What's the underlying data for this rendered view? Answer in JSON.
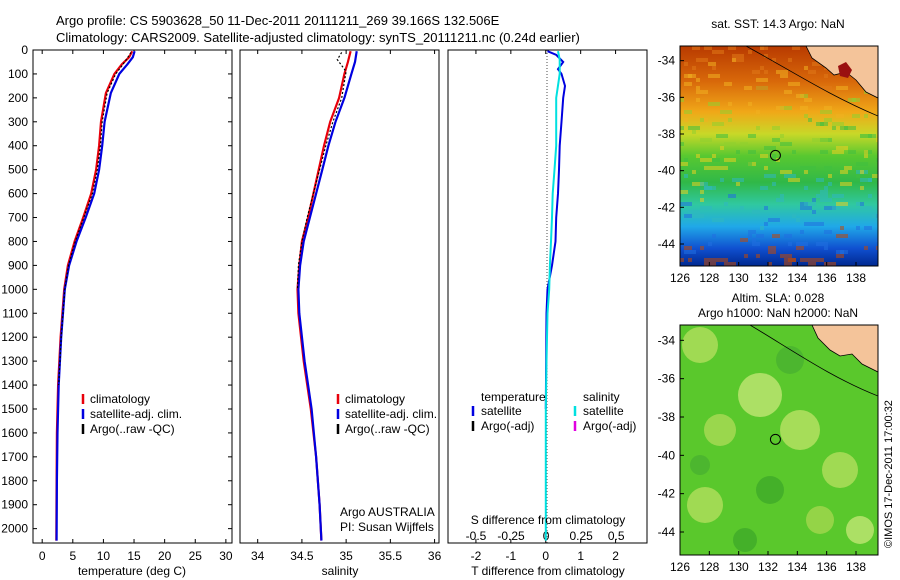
{
  "header": {
    "line1": "Argo profile: CS 5903628_50 11-Dec-2011 20111211_269 39.166S 132.506E",
    "line2": "Climatology: CARS2009. Satellite-adjusted climatology: synTS_20111211.nc (0.24d earlier)"
  },
  "chart_data": [
    {
      "type": "line",
      "xlabel": "temperature (deg C)",
      "ylabel": "",
      "xlim": [
        -1.5,
        31
      ],
      "ylim": [
        0,
        2060
      ],
      "x_ticks": [
        "0",
        "5",
        "10",
        "15",
        "20",
        "25",
        "30"
      ],
      "y_ticks": [
        "0",
        "100",
        "200",
        "300",
        "400",
        "500",
        "600",
        "700",
        "800",
        "900",
        "1000",
        "1100",
        "1200",
        "1300",
        "1400",
        "1500",
        "1600",
        "1700",
        "1800",
        "1900",
        "2000"
      ],
      "legend": [
        "climatology",
        "satellite-adj. clim.",
        "Argo(..raw -QC)"
      ],
      "legend_position": "lower-right",
      "colors": {
        "climatology": "#e8000b",
        "satellite-adj. clim.": "#0000e0",
        "Argo(..raw -QC)": "#000000"
      },
      "series": [
        {
          "name": "climatology",
          "x": [
            14.7,
            14.2,
            13.0,
            11.8,
            10.4,
            9.6,
            9.3,
            8.8,
            8.0,
            6.7,
            5.3,
            4.2,
            3.6,
            3.0,
            2.6,
            2.4,
            2.35,
            2.3
          ],
          "y": [
            5,
            30,
            60,
            100,
            180,
            300,
            400,
            500,
            600,
            700,
            800,
            900,
            1000,
            1200,
            1400,
            1600,
            1800,
            2050
          ]
        },
        {
          "name": "satellite-adj. clim.",
          "x": [
            15.1,
            14.8,
            13.9,
            12.6,
            11.2,
            10.2,
            9.8,
            9.3,
            8.5,
            7.1,
            5.6,
            4.4,
            3.7,
            3.1,
            2.7,
            2.5,
            2.4,
            2.35
          ],
          "y": [
            5,
            30,
            60,
            100,
            180,
            300,
            400,
            500,
            600,
            700,
            800,
            900,
            1000,
            1200,
            1400,
            1600,
            1800,
            2050
          ]
        },
        {
          "name": "Argo(..raw -QC)",
          "x": [
            14.5,
            14.0,
            13.2,
            12.0,
            10.6,
            9.8,
            9.5,
            9.0,
            8.2,
            6.8,
            5.4,
            4.3,
            3.7,
            3.1,
            2.7
          ],
          "y": [
            10,
            30,
            60,
            100,
            180,
            300,
            400,
            500,
            600,
            700,
            800,
            900,
            1000,
            1200,
            1400
          ]
        }
      ]
    },
    {
      "type": "line",
      "xlabel": "salinity",
      "xlim": [
        33.8,
        36.05
      ],
      "ylim": [
        0,
        2060
      ],
      "x_ticks": [
        "34",
        "34.5",
        "35",
        "35.5",
        "36"
      ],
      "legend": [
        "climatology",
        "satellite-adj. clim.",
        "Argo(..raw -QC)"
      ],
      "legend_position": "lower-right",
      "annotation": [
        "Argo AUSTRALIA",
        "PI: Susan Wijffels"
      ],
      "series": [
        {
          "name": "climatology",
          "x": [
            35.05,
            35.02,
            34.98,
            34.92,
            34.82,
            34.75,
            34.69,
            34.63,
            34.57,
            34.5,
            34.47,
            34.45,
            34.46,
            34.52,
            34.6,
            34.66,
            34.7,
            34.72
          ],
          "y": [
            5,
            50,
            100,
            200,
            300,
            400,
            500,
            600,
            700,
            800,
            900,
            1000,
            1100,
            1300,
            1500,
            1700,
            1900,
            2050
          ]
        },
        {
          "name": "satellite-adj. clim.",
          "x": [
            35.12,
            35.1,
            35.06,
            34.98,
            34.88,
            34.8,
            34.73,
            34.66,
            34.59,
            34.52,
            34.48,
            34.46,
            34.47,
            34.53,
            34.61,
            34.66,
            34.7,
            34.72
          ],
          "y": [
            5,
            50,
            100,
            200,
            300,
            400,
            500,
            600,
            700,
            800,
            900,
            1000,
            1100,
            1300,
            1500,
            1700,
            1900,
            2050
          ]
        },
        {
          "name": "Argo(..raw -QC)",
          "x": [
            34.95,
            34.9,
            35.0,
            34.95,
            34.85,
            34.77,
            34.7,
            34.63,
            34.56,
            34.5,
            34.46,
            34.45
          ],
          "y": [
            10,
            40,
            90,
            200,
            300,
            400,
            500,
            600,
            700,
            800,
            900,
            1000
          ]
        }
      ]
    },
    {
      "type": "line",
      "xlabel": "T difference from climatology",
      "x2label": "S difference from climatology",
      "xlim": [
        -2.8,
        2.9
      ],
      "ylim": [
        0,
        2060
      ],
      "x_ticks": [
        "-2",
        "-1",
        "0",
        "1",
        "2"
      ],
      "x2_ticks": [
        "-0.5",
        "-0.25",
        "0",
        "0.25",
        "0.5"
      ],
      "legend_headers": [
        "temperature",
        "salinity"
      ],
      "legend": [
        "satellite",
        "Argo(-adj)",
        "satellite",
        "Argo(-adj)"
      ],
      "colors": {
        "T satellite": "#0000e0",
        "T Argo(-adj)": "#000000",
        "S satellite": "#00e0e0",
        "S Argo(-adj)": "#e000e0"
      },
      "series": [
        {
          "name": "satellite",
          "quantity": "temperature",
          "x": [
            0.05,
            0.3,
            0.5,
            0.35,
            0.45,
            0.55,
            0.5,
            0.45,
            0.4,
            0.38,
            0.35,
            0.3,
            0.28,
            0.18,
            0.05,
            0.02,
            0.0
          ],
          "y": [
            5,
            20,
            50,
            80,
            100,
            150,
            200,
            300,
            400,
            500,
            600,
            700,
            800,
            900,
            1000,
            1100,
            1500
          ]
        },
        {
          "name": "satellite",
          "quantity": "salinity",
          "x": [
            0.35,
            0.4,
            0.4,
            0.3,
            0.3,
            0.3,
            0.25,
            0.2,
            0.18,
            0.15,
            0.12,
            0.1,
            0.05,
            0.02,
            0.0,
            0.0
          ],
          "y": [
            5,
            40,
            100,
            200,
            300,
            400,
            500,
            600,
            700,
            800,
            900,
            1000,
            1100,
            1300,
            1500,
            2050
          ]
        }
      ]
    },
    {
      "type": "heatmap",
      "title": "sat. SST: 14.3 Argo: NaN",
      "x_ticks": [
        "126",
        "128",
        "130",
        "132",
        "134",
        "136",
        "138"
      ],
      "y_ticks": [
        "-34",
        "-36",
        "-38",
        "-40",
        "-42",
        "-44"
      ],
      "xlim": [
        126,
        139.5
      ],
      "ylim": [
        -45.2,
        -33.2
      ],
      "marker": {
        "lon": 132.506,
        "lat": -39.166
      }
    },
    {
      "type": "heatmap",
      "title_line1": "Altim. SLA: 0.028",
      "title_line2": "Argo h1000: NaN h2000: NaN",
      "x_ticks": [
        "126",
        "128",
        "130",
        "132",
        "134",
        "136",
        "138"
      ],
      "y_ticks": [
        "-34",
        "-36",
        "-38",
        "-40",
        "-42",
        "-44"
      ],
      "xlim": [
        126,
        139.5
      ],
      "ylim": [
        -45.2,
        -33.2
      ],
      "marker": {
        "lon": 132.506,
        "lat": -39.166
      }
    }
  ],
  "credit": "©IMOS 17-Dec-2011 17:00:32"
}
